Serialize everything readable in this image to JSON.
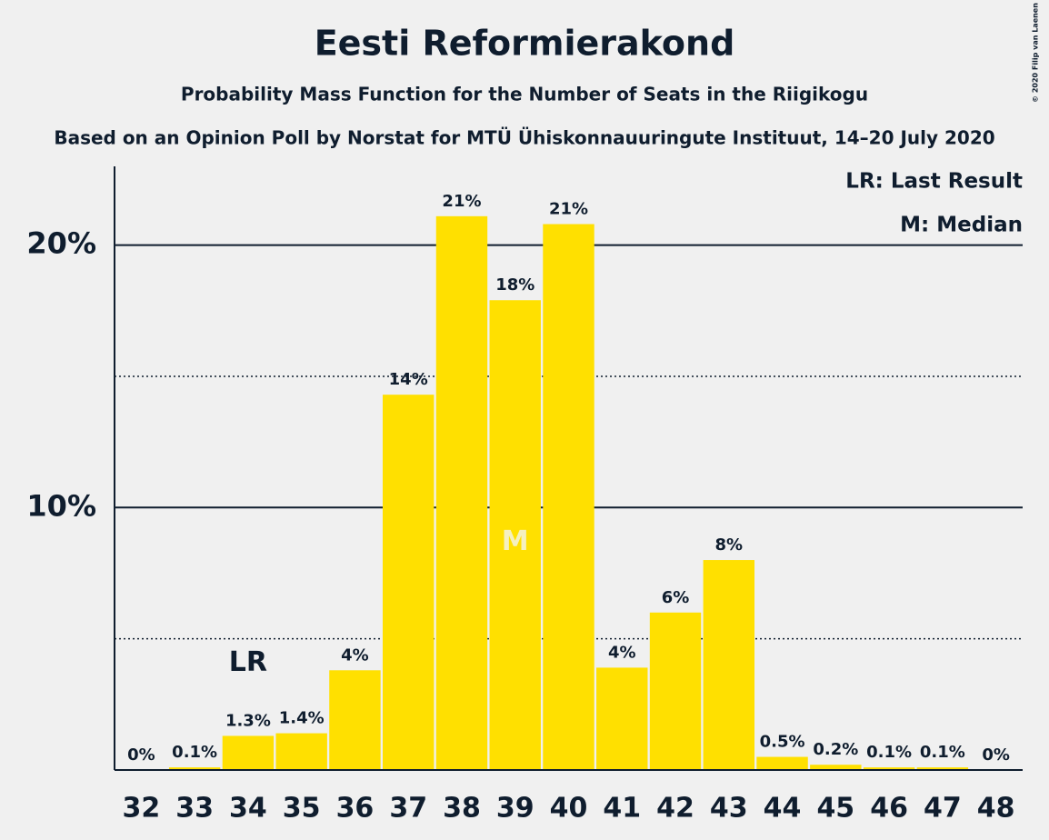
{
  "chart_data": {
    "type": "bar",
    "title": "Eesti Reformierakond",
    "subtitle": "Probability Mass Function for the Number of Seats in the Riigikogu",
    "caption": "Based on an Opinion Poll by Norstat for MTÜ Ühiskonnauuringute Instituut, 14–20 July 2020",
    "copyright": "© 2020 Filip van Laenen",
    "categories": [
      32,
      33,
      34,
      35,
      36,
      37,
      38,
      39,
      40,
      41,
      42,
      43,
      44,
      45,
      46,
      47,
      48
    ],
    "values": [
      0,
      0.1,
      1.3,
      1.4,
      3.8,
      14.3,
      21.1,
      17.9,
      20.8,
      3.9,
      6.0,
      8.0,
      0.5,
      0.2,
      0.1,
      0.1,
      0
    ],
    "value_labels": [
      "0%",
      "0.1%",
      "1.3%",
      "1.4%",
      "4%",
      "14%",
      "21%",
      "18%",
      "21%",
      "4%",
      "6%",
      "8%",
      "0.5%",
      "0.2%",
      "0.1%",
      "0.1%",
      "0%"
    ],
    "color": "#ffe000",
    "ylim": [
      0,
      23
    ],
    "yticks": [
      {
        "value": 10,
        "label": "10%"
      },
      {
        "value": 20,
        "label": "20%"
      }
    ],
    "minor_yticks": [
      5,
      15
    ],
    "grid": true,
    "annotations": [
      {
        "text": "LR",
        "category": 34,
        "position": "above"
      },
      {
        "text": "M",
        "category": 39,
        "position": "inside"
      }
    ],
    "legend": [
      "LR: Last Result",
      "M: Median"
    ]
  }
}
